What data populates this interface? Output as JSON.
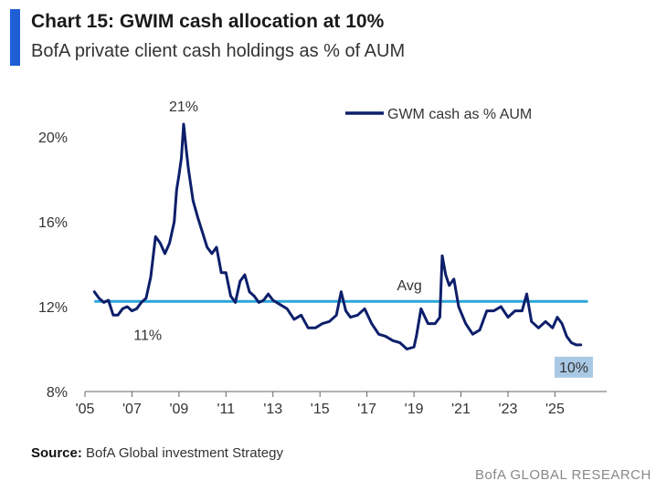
{
  "header": {
    "title": "Chart 15: GWIM cash allocation at 10%",
    "subtitle": "BofA private client cash holdings as % of AUM"
  },
  "footer": {
    "source_label": "Source:",
    "source_text": "BofA Global investment Strategy",
    "watermark": "BofA GLOBAL RESEARCH"
  },
  "colors": {
    "series": "#0d1f6b",
    "avg": "#2aa6d9",
    "accent": "#1f5fd6",
    "highlight_box": "#a9c8e4"
  },
  "chart_data": {
    "type": "line",
    "title": "Chart 15: GWIM cash allocation at 10%",
    "subtitle": "BofA private client cash holdings as % of AUM",
    "xlim": [
      2005,
      2027.2
    ],
    "ylim": [
      8,
      21
    ],
    "xticks": [
      2005,
      2007,
      2009,
      2011,
      2013,
      2015,
      2017,
      2019,
      2021,
      2023,
      2025
    ],
    "xtick_labels": [
      "'05",
      "'07",
      "'09",
      "'11",
      "'13",
      "'15",
      "'17",
      "'19",
      "'21",
      "'23",
      "'25"
    ],
    "yticks": [
      8,
      12,
      16,
      20
    ],
    "ytick_labels": [
      "8%",
      "12%",
      "16%",
      "20%"
    ],
    "grid": false,
    "legend": "top-right",
    "series": [
      {
        "name": "GWM cash as % AUM",
        "x": [
          2005.4,
          2005.6,
          2005.8,
          2006.0,
          2006.2,
          2006.4,
          2006.6,
          2006.8,
          2007.0,
          2007.2,
          2007.4,
          2007.6,
          2007.8,
          2008.0,
          2008.2,
          2008.4,
          2008.6,
          2008.8,
          2008.9,
          2009.0,
          2009.1,
          2009.2,
          2009.3,
          2009.4,
          2009.6,
          2009.8,
          2010.0,
          2010.2,
          2010.4,
          2010.6,
          2010.8,
          2011.0,
          2011.2,
          2011.4,
          2011.6,
          2011.8,
          2012.0,
          2012.2,
          2012.4,
          2012.6,
          2012.8,
          2013.0,
          2013.3,
          2013.6,
          2013.9,
          2014.2,
          2014.5,
          2014.8,
          2015.1,
          2015.4,
          2015.7,
          2015.9,
          2016.1,
          2016.3,
          2016.6,
          2016.9,
          2017.2,
          2017.5,
          2017.8,
          2018.1,
          2018.4,
          2018.7,
          2019.0,
          2019.1,
          2019.3,
          2019.6,
          2019.9,
          2020.1,
          2020.2,
          2020.35,
          2020.5,
          2020.7,
          2020.9,
          2021.2,
          2021.5,
          2021.8,
          2022.1,
          2022.4,
          2022.7,
          2023.0,
          2023.3,
          2023.6,
          2023.8,
          2024.0,
          2024.3,
          2024.6,
          2024.9,
          2025.1,
          2025.3,
          2025.5,
          2025.7,
          2025.9,
          2026.1
        ],
        "y": [
          12.7,
          12.4,
          12.2,
          12.3,
          11.6,
          11.6,
          11.9,
          12.0,
          11.8,
          11.9,
          12.2,
          12.4,
          13.4,
          15.3,
          15.0,
          14.5,
          15.0,
          16.0,
          17.5,
          18.2,
          19.0,
          20.6,
          19.5,
          18.5,
          17.0,
          16.2,
          15.5,
          14.8,
          14.5,
          14.8,
          13.6,
          13.6,
          12.5,
          12.2,
          13.2,
          13.5,
          12.7,
          12.5,
          12.2,
          12.3,
          12.6,
          12.3,
          12.1,
          11.9,
          11.4,
          11.6,
          11.0,
          11.0,
          11.2,
          11.3,
          11.6,
          12.7,
          11.8,
          11.5,
          11.6,
          11.9,
          11.2,
          10.7,
          10.6,
          10.4,
          10.3,
          10.0,
          10.1,
          10.6,
          11.9,
          11.2,
          11.2,
          11.5,
          14.4,
          13.5,
          13.0,
          13.3,
          12.0,
          11.2,
          10.7,
          10.9,
          11.8,
          11.8,
          12.0,
          11.5,
          11.8,
          11.8,
          12.6,
          11.3,
          11.0,
          11.3,
          11.0,
          11.5,
          11.2,
          10.6,
          10.3,
          10.2,
          10.2
        ]
      },
      {
        "name": "Avg",
        "x": [
          2005.4,
          2026.4
        ],
        "y": [
          12.25,
          12.25
        ]
      }
    ],
    "annotations": [
      {
        "text": "21%",
        "x": 2009.2,
        "y": 20.6
      },
      {
        "text": "11%",
        "x": 2007.4,
        "y": 11.6
      },
      {
        "text": "Avg",
        "x": 2019.0,
        "y": 12.25
      },
      {
        "text": "10%",
        "x": 2025.8,
        "y": 10.2,
        "boxed": true
      }
    ]
  }
}
